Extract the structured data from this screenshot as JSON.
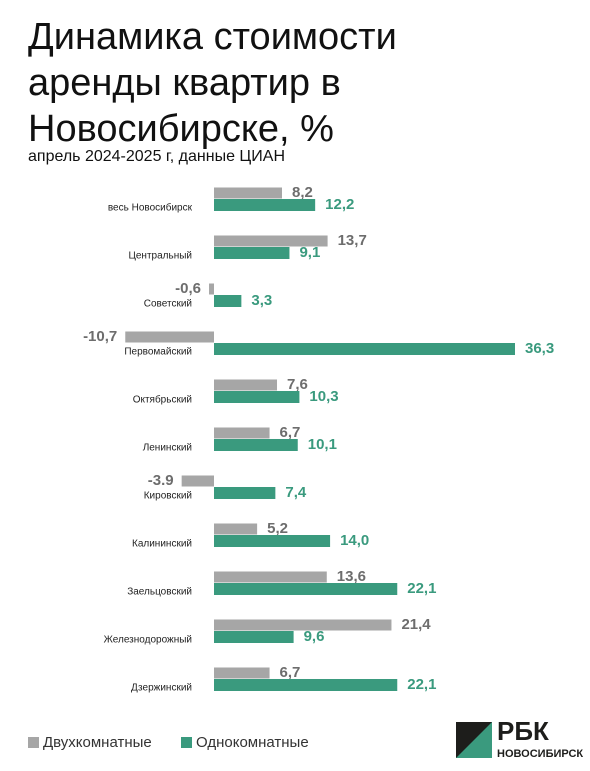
{
  "chart_data": {
    "type": "hbar",
    "title": "Динамика стоимости аренды квартир в Новосибирске, %",
    "subtitle": "апрель 2024-2025 г, данные ЦИАН",
    "categories": [
      "весь Новосибирск",
      "Центральный",
      "Советский",
      "Первомайский",
      "Октябрьский",
      "Ленинский",
      "Кировский",
      "Калининский",
      "Заельцовский",
      "Железнодорожный",
      "Дзержинский"
    ],
    "series": [
      {
        "name": "Двухкомнатные",
        "color": "#a6a6a6",
        "values": [
          8.2,
          13.7,
          -0.6,
          -10.7,
          7.6,
          6.7,
          -3.9,
          5.2,
          13.6,
          21.4,
          6.7
        ],
        "value_labels": [
          "8,2",
          "13,7",
          "-0,6",
          "-10,7",
          "7,6",
          "6,7",
          "-3.9",
          "5,2",
          "13,6",
          "21,4",
          "6,7"
        ]
      },
      {
        "name": "Однокомнатные",
        "color": "#3a9a7e",
        "values": [
          12.2,
          9.1,
          3.3,
          36.3,
          10.3,
          10.1,
          7.4,
          14.0,
          22.1,
          9.6,
          22.1
        ],
        "value_labels": [
          "12,2",
          "9,1",
          "3,3",
          "36,3",
          "10,3",
          "10,1",
          "7,4",
          "14,0",
          "22,1",
          "9,6",
          "22,1"
        ]
      }
    ],
    "legend": "bottom-left",
    "logo": {
      "brand": "РБК",
      "region": "НОВОСИБИРСК"
    }
  }
}
